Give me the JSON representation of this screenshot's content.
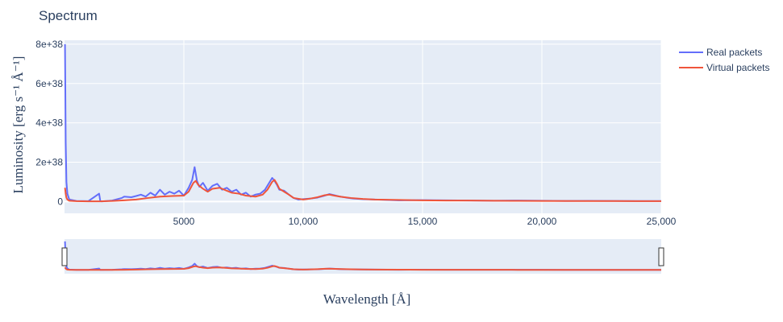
{
  "chart_data": {
    "type": "line",
    "title": "Spectrum",
    "xlabel": "Wavelength [Å]",
    "ylabel": "Luminosity [erg s⁻¹ Å⁻¹]",
    "xlim": [
      0,
      25000
    ],
    "ylim": [
      -6e+37,
      8.2e+38
    ],
    "x_ticks": [
      5000,
      10000,
      15000,
      20000,
      25000
    ],
    "x_tick_labels": [
      "5000",
      "10,000",
      "15,000",
      "20,000",
      "25,000"
    ],
    "y_ticks": [
      0,
      2e+38,
      4e+38,
      6e+38,
      8e+38
    ],
    "y_tick_labels": [
      "0",
      "2e+38",
      "4e+38",
      "6e+38",
      "8e+38"
    ],
    "grid": true,
    "legend_position": "top-right",
    "rangeslider": true,
    "series": [
      {
        "name": "Real packets",
        "color": "#636efa",
        "x": [
          20,
          50,
          80,
          120,
          200,
          500,
          1000,
          1450,
          1500,
          1540,
          1600,
          2000,
          2400,
          2500,
          2800,
          3000,
          3200,
          3400,
          3600,
          3800,
          4000,
          4200,
          4400,
          4600,
          4800,
          5000,
          5200,
          5350,
          5450,
          5550,
          5650,
          5800,
          6000,
          6200,
          6400,
          6600,
          6800,
          7000,
          7200,
          7400,
          7600,
          7800,
          8000,
          8200,
          8400,
          8600,
          8700,
          8800,
          8900,
          9000,
          9200,
          9400,
          9600,
          9800,
          10000,
          10300,
          10600,
          10900,
          11100,
          11300,
          11500,
          11800,
          12100,
          12500,
          13000,
          13500,
          14000,
          15000,
          16000,
          17000,
          18000,
          19000,
          20000,
          21000,
          22000,
          23000,
          24000,
          25000
        ],
        "y": [
          8e+38,
          3e+38,
          1e+38,
          4e+37,
          1e+37,
          3e+36,
          2e+36,
          4e+37,
          2e+36,
          1e+36,
          1e+36,
          5e+36,
          1.8e+37,
          2.5e+37,
          2.2e+37,
          2.8e+37,
          3.5e+37,
          2.5e+37,
          4.5e+37,
          3e+37,
          6e+37,
          3.5e+37,
          5e+37,
          4e+37,
          5.5e+37,
          3e+37,
          7e+37,
          1.1e+38,
          1.75e+38,
          1.05e+38,
          7.5e+37,
          9.5e+37,
          5.5e+37,
          8e+37,
          9e+37,
          6e+37,
          7e+37,
          5e+37,
          6e+37,
          3.5e+37,
          4.5e+37,
          2.5e+37,
          3.5e+37,
          4e+37,
          6e+37,
          1e+38,
          1.2e+38,
          1.05e+38,
          8.5e+37,
          6e+37,
          5.5e+37,
          3.5e+37,
          1.8e+37,
          1e+37,
          1.2e+37,
          1.5e+37,
          2e+37,
          3e+37,
          3.8e+37,
          3.2e+37,
          2.6e+37,
          2e+37,
          1.5e+37,
          1.2e+37,
          1e+37,
          8e+36,
          6e+36,
          7e+36,
          6e+36,
          5e+36,
          4e+36,
          5e+36,
          4e+36,
          3e+36,
          3.5e+36,
          3e+36,
          2.5e+36,
          2.5e+36
        ]
      },
      {
        "name": "Virtual packets",
        "color": "#ef553b",
        "x": [
          20,
          50,
          80,
          120,
          200,
          500,
          1000,
          1500,
          2000,
          2500,
          3000,
          3500,
          4000,
          4500,
          5000,
          5200,
          5400,
          5500,
          5600,
          5800,
          6000,
          6200,
          6500,
          6800,
          7000,
          7300,
          7600,
          8000,
          8300,
          8500,
          8700,
          8800,
          8900,
          9000,
          9200,
          9400,
          9600,
          10000,
          10300,
          10600,
          10900,
          11100,
          11300,
          11600,
          12000,
          12500,
          13000,
          14000,
          15000,
          16000,
          17000,
          18000,
          19000,
          20000,
          22000,
          24000,
          25000
        ],
        "y": [
          7e+37,
          4e+37,
          2e+37,
          1e+37,
          4e+36,
          2e+36,
          1e+36,
          1e+36,
          3e+36,
          6e+36,
          1e+37,
          1.8e+37,
          2.5e+37,
          2.8e+37,
          3e+37,
          5e+37,
          9.5e+37,
          1.05e+38,
          8.5e+37,
          6.5e+37,
          5e+37,
          6.5e+37,
          7e+37,
          5.5e+37,
          4.5e+37,
          4e+37,
          3e+37,
          2.5e+37,
          3.5e+37,
          6e+37,
          1e+38,
          1.1e+38,
          9e+37,
          6.5e+37,
          5e+37,
          3.5e+37,
          1.8e+37,
          1e+37,
          1.5e+37,
          2.2e+37,
          3.2e+37,
          3.5e+37,
          3e+37,
          2.4e+37,
          1.8e+37,
          1.3e+37,
          1e+37,
          8e+36,
          6e+36,
          5e+36,
          5e+36,
          4e+36,
          3.5e+36,
          3e+36,
          2.5e+36,
          2e+36,
          2e+36
        ]
      }
    ]
  }
}
